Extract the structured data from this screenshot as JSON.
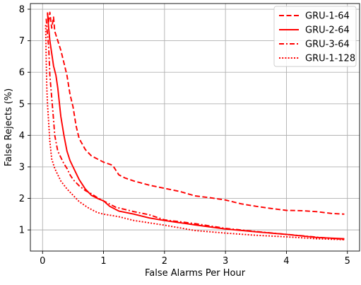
{
  "chart_data": {
    "type": "line",
    "title": "",
    "xlabel": "False Alarms Per Hour",
    "ylabel": "False Rejects (%)",
    "xlim": [
      -0.2,
      5.2
    ],
    "ylim": [
      0.33,
      8.18
    ],
    "xticks": [
      0,
      1,
      2,
      3,
      4,
      5
    ],
    "yticks": [
      1,
      2,
      3,
      4,
      5,
      6,
      7,
      8
    ],
    "xtick_labels": [
      "0",
      "1",
      "2",
      "3",
      "4",
      "5"
    ],
    "ytick_labels": [
      "1",
      "2",
      "3",
      "4",
      "5",
      "6",
      "7",
      "8"
    ],
    "grid": true,
    "legend_position": "top-right",
    "line_color": "#ff0000",
    "series": [
      {
        "name": "GRU-1-64",
        "dash": "dashed",
        "x": [
          0.08,
          0.1,
          0.12,
          0.15,
          0.18,
          0.2,
          0.25,
          0.3,
          0.35,
          0.4,
          0.45,
          0.5,
          0.55,
          0.6,
          0.7,
          0.8,
          0.9,
          1.0,
          1.15,
          1.25,
          1.35,
          1.5,
          1.75,
          2.0,
          2.25,
          2.5,
          2.75,
          3.0,
          3.25,
          3.5,
          3.75,
          4.0,
          4.25,
          4.5,
          4.75,
          4.95
        ],
        "y": [
          7.85,
          7.6,
          7.9,
          7.4,
          7.75,
          7.3,
          7.0,
          6.7,
          6.3,
          5.9,
          5.3,
          4.9,
          4.3,
          3.9,
          3.55,
          3.35,
          3.25,
          3.15,
          3.05,
          2.75,
          2.65,
          2.55,
          2.42,
          2.32,
          2.22,
          2.08,
          2.02,
          1.95,
          1.83,
          1.75,
          1.68,
          1.62,
          1.61,
          1.58,
          1.52,
          1.5
        ]
      },
      {
        "name": "GRU-2-64",
        "dash": "solid",
        "x": [
          0.08,
          0.1,
          0.12,
          0.15,
          0.18,
          0.22,
          0.25,
          0.3,
          0.35,
          0.4,
          0.45,
          0.5,
          0.55,
          0.6,
          0.7,
          0.8,
          0.9,
          1.0,
          1.1,
          1.25,
          1.5,
          1.75,
          2.0,
          2.5,
          3.0,
          3.5,
          4.0,
          4.5,
          4.95
        ],
        "y": [
          7.9,
          7.4,
          7.0,
          6.6,
          6.2,
          5.9,
          5.5,
          4.6,
          4.0,
          3.5,
          3.2,
          3.0,
          2.8,
          2.6,
          2.3,
          2.1,
          2.0,
          1.92,
          1.75,
          1.6,
          1.5,
          1.38,
          1.3,
          1.16,
          1.03,
          0.94,
          0.86,
          0.76,
          0.72
        ]
      },
      {
        "name": "GRU-3-64",
        "dash": "dashdot",
        "x": [
          0.06,
          0.08,
          0.1,
          0.12,
          0.15,
          0.18,
          0.2,
          0.25,
          0.3,
          0.35,
          0.4,
          0.45,
          0.5,
          0.6,
          0.7,
          0.8,
          0.9,
          1.0,
          1.2,
          1.5,
          1.75,
          2.0,
          2.5,
          3.0,
          3.5,
          4.0,
          4.5,
          4.95
        ],
        "y": [
          7.7,
          7.2,
          6.8,
          5.9,
          5.2,
          4.5,
          4.0,
          3.5,
          3.3,
          3.1,
          2.95,
          2.75,
          2.6,
          2.4,
          2.25,
          2.15,
          2.02,
          1.92,
          1.72,
          1.58,
          1.48,
          1.32,
          1.2,
          1.05,
          0.95,
          0.86,
          0.77,
          0.7
        ]
      },
      {
        "name": "GRU-1-128",
        "dash": "dotted",
        "x": [
          0.05,
          0.06,
          0.07,
          0.08,
          0.1,
          0.12,
          0.15,
          0.2,
          0.25,
          0.3,
          0.4,
          0.5,
          0.6,
          0.75,
          0.9,
          1.0,
          1.25,
          1.5,
          2.0,
          2.5,
          3.0,
          3.5,
          4.0,
          4.5,
          4.95
        ],
        "y": [
          7.5,
          6.4,
          5.5,
          5.0,
          4.4,
          3.8,
          3.25,
          2.95,
          2.75,
          2.55,
          2.3,
          2.1,
          1.9,
          1.7,
          1.55,
          1.5,
          1.42,
          1.3,
          1.15,
          0.98,
          0.9,
          0.83,
          0.78,
          0.72,
          0.69
        ]
      }
    ]
  }
}
